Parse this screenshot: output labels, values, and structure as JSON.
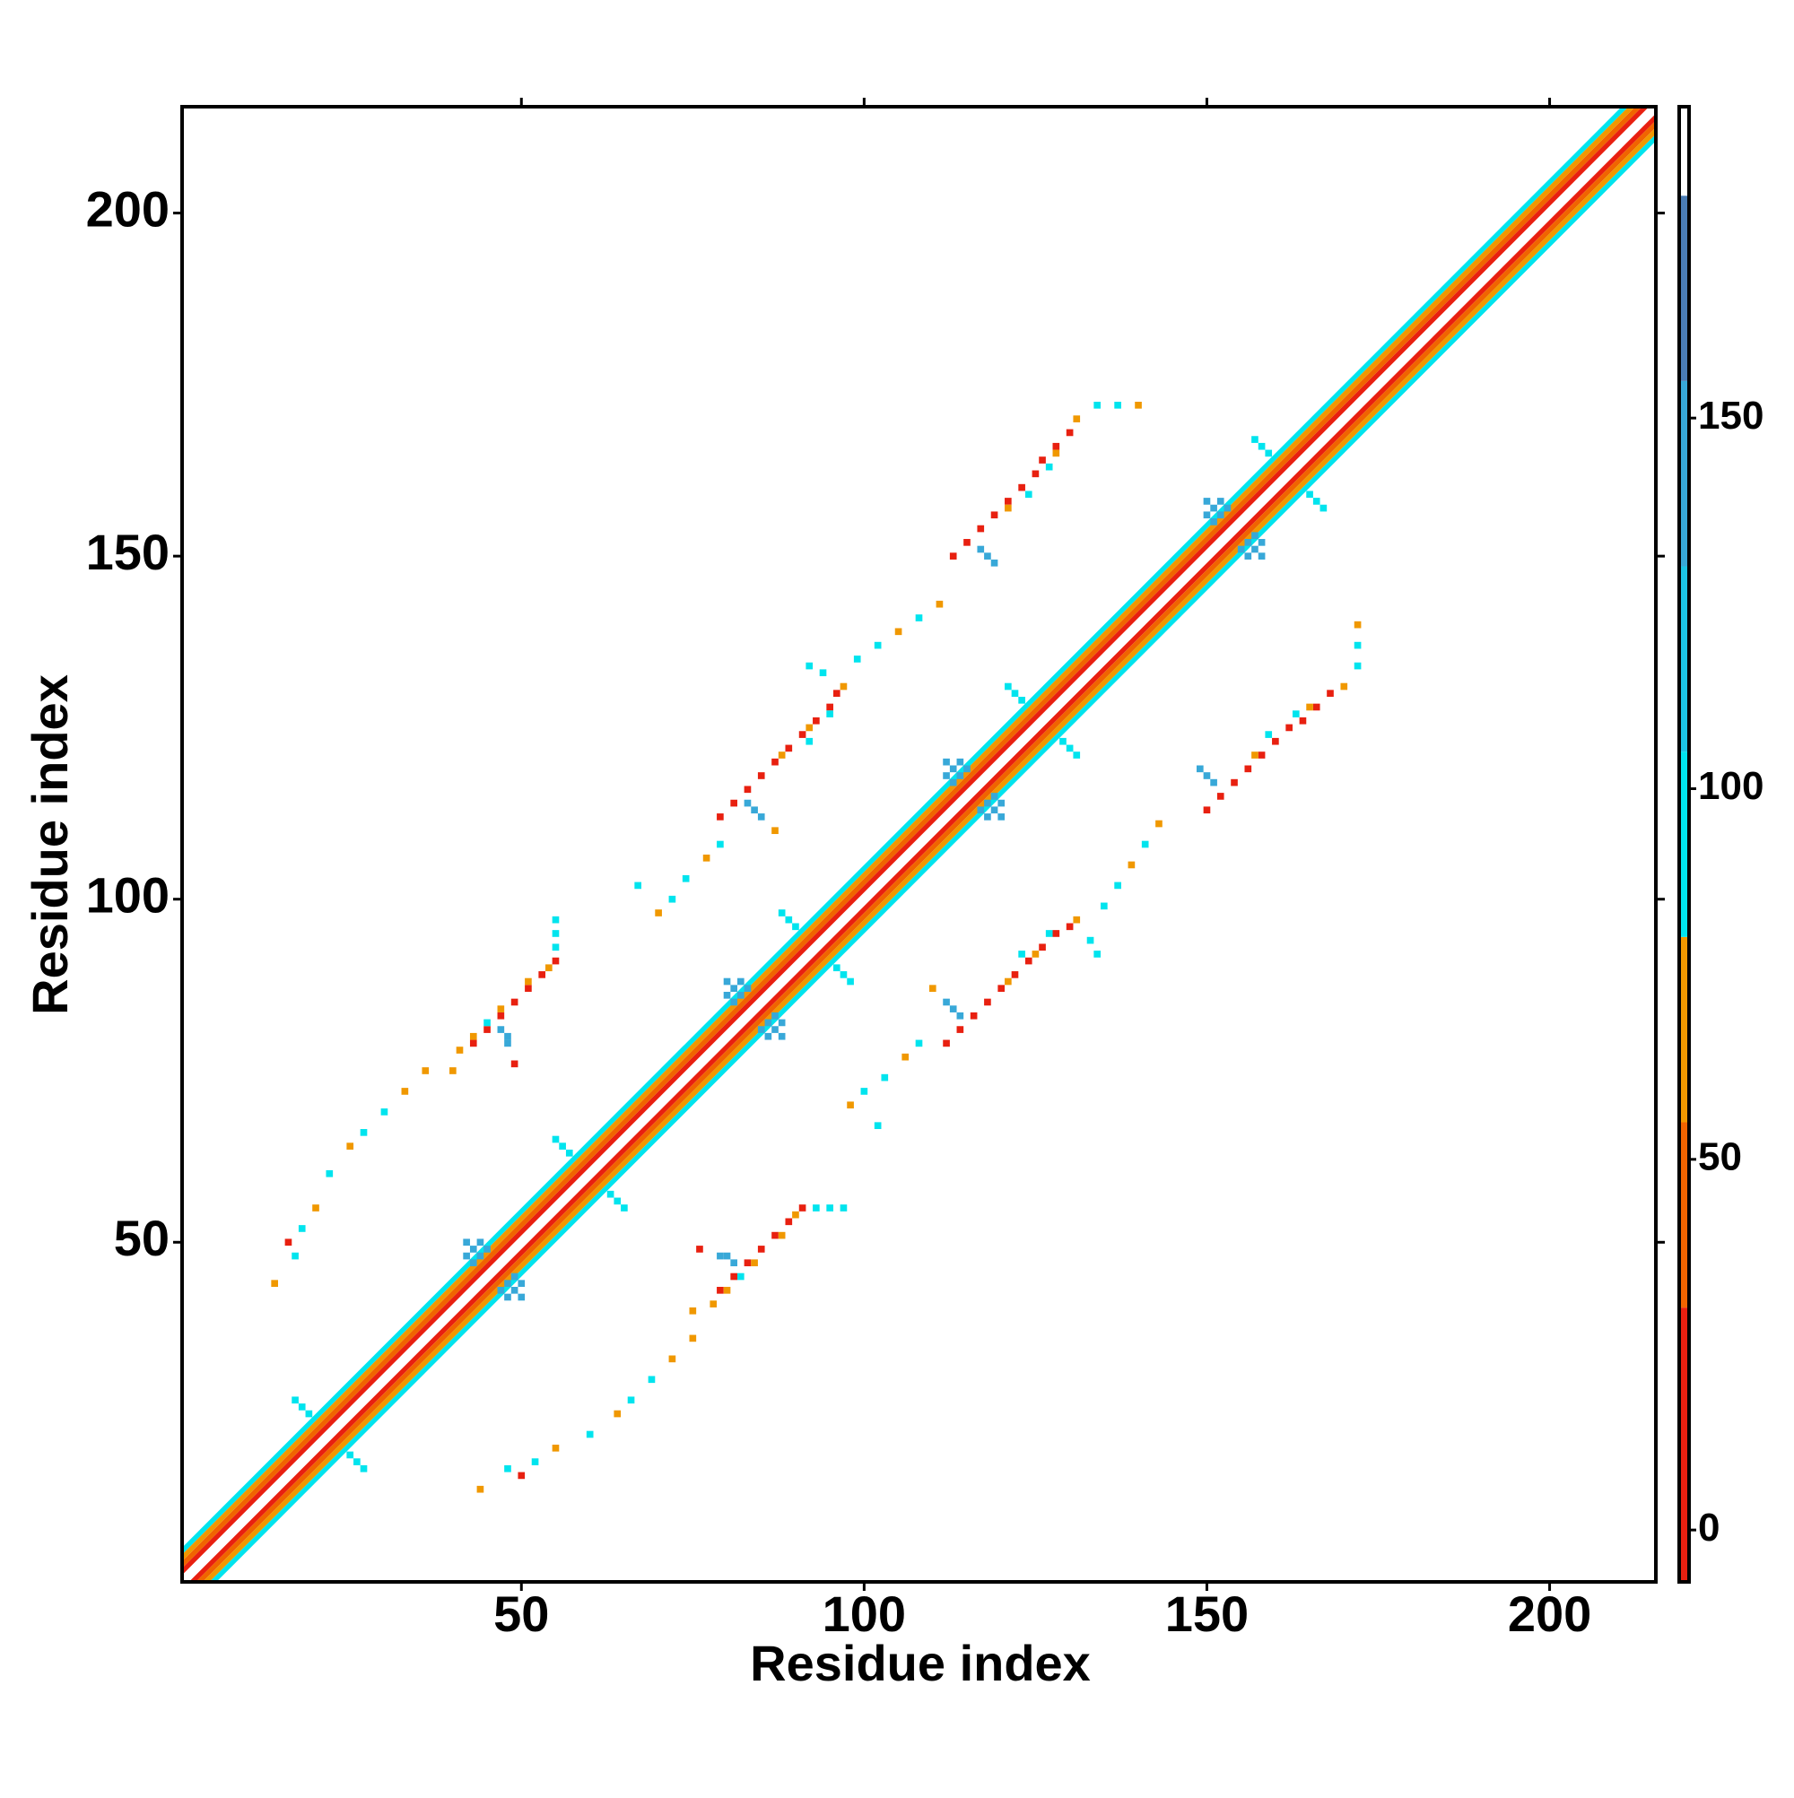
{
  "chart_data": {
    "type": "heatmap",
    "xlabel": "Residue index",
    "ylabel": "Residue index",
    "xlim": [
      0.5,
      215.5
    ],
    "ylim": [
      0.5,
      215.5
    ],
    "xticks": [
      50,
      100,
      150,
      200
    ],
    "yticks": [
      50,
      100,
      150,
      200
    ],
    "symmetric": true,
    "diagonal_band": {
      "offsets": [
        1,
        2,
        3,
        4
      ],
      "values": [
        10,
        45,
        65,
        95
      ]
    },
    "contacts": [
      [
        79,
        43,
        10
      ],
      [
        81,
        45,
        10
      ],
      [
        83,
        47,
        10
      ],
      [
        85,
        49,
        10
      ],
      [
        87,
        51,
        10
      ],
      [
        89,
        53,
        10
      ],
      [
        91,
        55,
        10
      ],
      [
        80,
        43,
        60
      ],
      [
        84,
        47,
        60
      ],
      [
        88,
        51,
        60
      ],
      [
        90,
        54,
        60
      ],
      [
        93,
        55,
        95
      ],
      [
        95,
        55,
        95
      ],
      [
        97,
        55,
        95
      ],
      [
        82,
        45,
        95
      ],
      [
        80,
        48,
        140
      ],
      [
        81,
        47,
        140
      ],
      [
        79,
        48,
        140
      ],
      [
        76,
        49,
        10
      ],
      [
        75,
        40,
        60
      ],
      [
        78,
        41,
        60
      ],
      [
        112,
        79,
        10
      ],
      [
        114,
        81,
        10
      ],
      [
        116,
        83,
        10
      ],
      [
        118,
        85,
        10
      ],
      [
        120,
        87,
        10
      ],
      [
        122,
        89,
        10
      ],
      [
        124,
        91,
        10
      ],
      [
        126,
        93,
        10
      ],
      [
        128,
        95,
        10
      ],
      [
        130,
        96,
        10
      ],
      [
        121,
        88,
        60
      ],
      [
        125,
        92,
        60
      ],
      [
        110,
        87,
        60
      ],
      [
        131,
        97,
        60
      ],
      [
        123,
        92,
        95
      ],
      [
        127,
        95,
        95
      ],
      [
        133,
        94,
        95
      ],
      [
        134,
        92,
        95
      ],
      [
        113,
        84,
        140
      ],
      [
        114,
        83,
        140
      ],
      [
        112,
        85,
        140
      ],
      [
        150,
        113,
        10
      ],
      [
        152,
        115,
        10
      ],
      [
        154,
        117,
        10
      ],
      [
        156,
        119,
        10
      ],
      [
        158,
        121,
        10
      ],
      [
        160,
        123,
        10
      ],
      [
        162,
        125,
        10
      ],
      [
        164,
        126,
        10
      ],
      [
        166,
        128,
        10
      ],
      [
        168,
        130,
        10
      ],
      [
        157,
        121,
        60
      ],
      [
        165,
        128,
        60
      ],
      [
        170,
        131,
        60
      ],
      [
        159,
        124,
        95
      ],
      [
        163,
        127,
        95
      ],
      [
        172,
        134,
        95
      ],
      [
        150,
        118,
        140
      ],
      [
        151,
        117,
        140
      ],
      [
        149,
        119,
        140
      ],
      [
        44,
        14,
        60
      ],
      [
        48,
        17,
        95
      ],
      [
        52,
        18,
        95
      ],
      [
        55,
        20,
        60
      ],
      [
        60,
        22,
        95
      ],
      [
        64,
        25,
        60
      ],
      [
        66,
        27,
        95
      ],
      [
        69,
        30,
        95
      ],
      [
        72,
        33,
        60
      ],
      [
        75,
        36,
        60
      ],
      [
        50,
        16,
        10
      ],
      [
        98,
        70,
        60
      ],
      [
        100,
        72,
        95
      ],
      [
        103,
        74,
        95
      ],
      [
        106,
        77,
        60
      ],
      [
        108,
        79,
        95
      ],
      [
        102,
        67,
        95
      ],
      [
        135,
        99,
        95
      ],
      [
        137,
        102,
        95
      ],
      [
        139,
        105,
        60
      ],
      [
        141,
        108,
        95
      ],
      [
        143,
        111,
        60
      ],
      [
        172,
        140,
        60
      ],
      [
        172,
        137,
        95
      ],
      [
        48,
        44,
        140
      ],
      [
        49,
        43,
        140
      ],
      [
        50,
        42,
        140
      ],
      [
        49,
        45,
        140
      ],
      [
        47,
        43,
        140
      ],
      [
        50,
        44,
        140
      ],
      [
        48,
        42,
        140
      ],
      [
        86,
        82,
        140
      ],
      [
        87,
        81,
        140
      ],
      [
        88,
        80,
        140
      ],
      [
        87,
        83,
        140
      ],
      [
        85,
        81,
        140
      ],
      [
        88,
        82,
        140
      ],
      [
        86,
        80,
        140
      ],
      [
        118,
        114,
        140
      ],
      [
        119,
        113,
        140
      ],
      [
        120,
        112,
        140
      ],
      [
        119,
        115,
        140
      ],
      [
        117,
        113,
        140
      ],
      [
        120,
        114,
        140
      ],
      [
        118,
        112,
        140
      ],
      [
        156,
        152,
        140
      ],
      [
        157,
        151,
        140
      ],
      [
        158,
        150,
        140
      ],
      [
        157,
        153,
        140
      ],
      [
        155,
        151,
        140
      ],
      [
        158,
        152,
        140
      ],
      [
        156,
        150,
        140
      ],
      [
        25,
        19,
        95
      ],
      [
        26,
        18,
        95
      ],
      [
        27,
        17,
        95
      ],
      [
        63,
        57,
        95
      ],
      [
        64,
        56,
        95
      ],
      [
        65,
        55,
        95
      ],
      [
        96,
        90,
        95
      ],
      [
        97,
        89,
        95
      ],
      [
        98,
        88,
        95
      ],
      [
        129,
        123,
        95
      ],
      [
        130,
        122,
        95
      ],
      [
        131,
        121,
        95
      ],
      [
        165,
        159,
        95
      ],
      [
        166,
        158,
        95
      ],
      [
        167,
        157,
        95
      ]
    ],
    "colorbar": {
      "lim": [
        -7,
        192
      ],
      "ticks": [
        0,
        50,
        100,
        150
      ],
      "levels": [
        {
          "from": -7,
          "to": 30,
          "color": "#e82010"
        },
        {
          "from": 30,
          "to": 55,
          "color": "#f06400"
        },
        {
          "from": 55,
          "to": 80,
          "color": "#f09800"
        },
        {
          "from": 80,
          "to": 105,
          "color": "#00e4ee"
        },
        {
          "from": 105,
          "to": 130,
          "color": "#1cc4e4"
        },
        {
          "from": 130,
          "to": 155,
          "color": "#38a8d8"
        },
        {
          "from": 155,
          "to": 180,
          "color": "#4a7cb4"
        },
        {
          "from": 180,
          "to": 192,
          "color": "#ffffff"
        }
      ]
    }
  }
}
